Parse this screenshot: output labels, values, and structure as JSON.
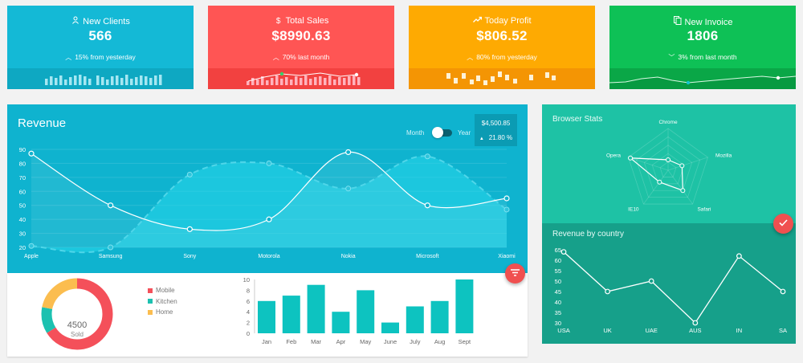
{
  "colors": {
    "clients": "#14b9d6",
    "sales": "#ff5554",
    "profit": "#feaa02",
    "invoice": "#0ec156",
    "revenue_bg": "#0fb3cf",
    "browser_bg": "#1ec2a5",
    "country_bg": "#16a08a",
    "fab": "#f05050"
  },
  "stats": [
    {
      "title": "New Clients",
      "icon": "user-icon",
      "value": "566",
      "trend": "up",
      "sub": "15% from yesterday",
      "spark": "bars"
    },
    {
      "title": "Total Sales",
      "icon": "dollar-icon",
      "value": "$8990.63",
      "trend": "up",
      "sub": "70% last month",
      "spark": "bars-line"
    },
    {
      "title": "Today Profit",
      "icon": "trending-up-icon",
      "value": "$806.52",
      "trend": "up",
      "sub": "80% from yesterday",
      "spark": "floating-blocks"
    },
    {
      "title": "New Invoice",
      "icon": "copy-icon",
      "value": "1806",
      "trend": "down",
      "sub": "3% from last month",
      "spark": "line"
    }
  ],
  "revenue": {
    "title": "Revenue",
    "toggle": {
      "left": "Month",
      "right": "Year",
      "state": "month"
    },
    "summary": {
      "amount": "$4,500.85",
      "change": "21.80 %",
      "trend": "up"
    },
    "chart_data": {
      "type": "line",
      "categories": [
        "Apple",
        "Samsung",
        "Sony",
        "Motorola",
        "Nokia",
        "Microsoft",
        "Xiaomi"
      ],
      "ylim": [
        20,
        90
      ],
      "yticks": [
        20,
        30,
        40,
        50,
        60,
        70,
        80,
        90
      ],
      "series": [
        {
          "style": "solid",
          "values": [
            87,
            50,
            33,
            40,
            88,
            50,
            55
          ]
        },
        {
          "style": "dashed",
          "values": [
            21,
            20,
            72,
            80,
            62,
            85,
            47
          ]
        }
      ]
    }
  },
  "devices": {
    "total": "4500",
    "total_label": "Sold",
    "chart_data": {
      "type": "pie",
      "labels": [
        "Mobile",
        "Kitchen",
        "Home"
      ],
      "values": [
        66,
        12,
        22
      ],
      "colors": [
        "#f4505a",
        "#1cc1b0",
        "#fbbd4f"
      ]
    }
  },
  "monthly": {
    "chart_data": {
      "type": "bar",
      "categories": [
        "Jan",
        "Feb",
        "Mar",
        "Apr",
        "May",
        "June",
        "July",
        "Aug",
        "Sept"
      ],
      "values": [
        6,
        7,
        9,
        4,
        8,
        2,
        5,
        6,
        10
      ],
      "ylim": [
        0,
        10
      ],
      "yticks": [
        0,
        2,
        4,
        6,
        8,
        10
      ],
      "color": "#0dc3c0"
    }
  },
  "browser": {
    "title": "Browser Stats",
    "chart_data": {
      "type": "radar",
      "axes": [
        "Chrome",
        "Mozilla",
        "Safari",
        "IE10",
        "Opera"
      ],
      "values": [
        0.25,
        0.35,
        0.6,
        0.35,
        0.95
      ]
    }
  },
  "country": {
    "title": "Revenue by country",
    "chart_data": {
      "type": "line",
      "categories": [
        "USA",
        "UK",
        "UAE",
        "AUS",
        "IN",
        "SA"
      ],
      "values": [
        64,
        45,
        50,
        30,
        62,
        45
      ],
      "ylim": [
        30,
        65
      ],
      "yticks": [
        30,
        35,
        40,
        45,
        50,
        55,
        60,
        65
      ]
    }
  }
}
